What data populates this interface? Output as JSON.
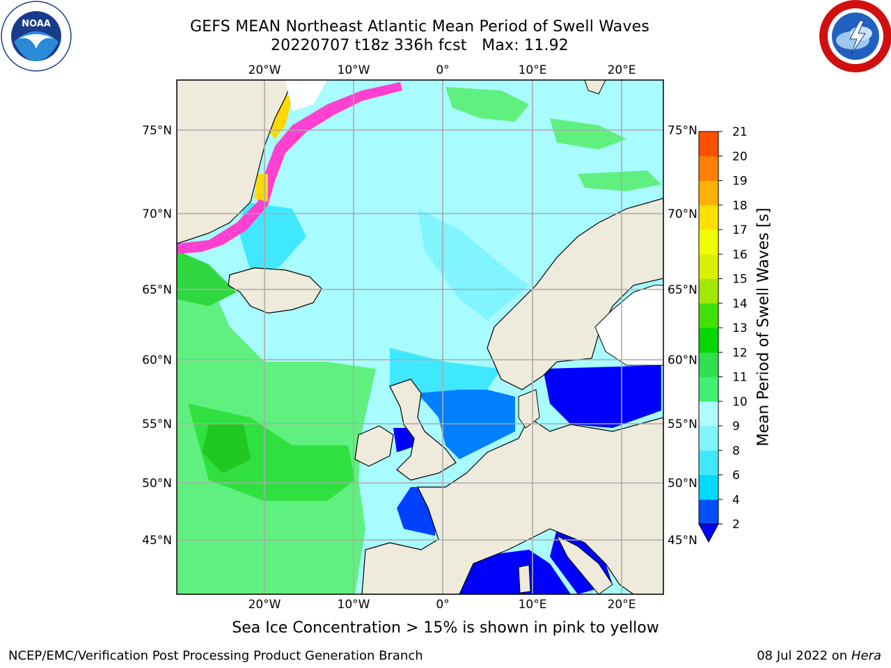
{
  "title": {
    "line1": "GEFS MEAN Northeast Atlantic Mean Period of Swell Waves",
    "line2": "20220707 t18z 336h fcst   Max: 11.92"
  },
  "axes": {
    "lon_labels": [
      "20°W",
      "10°W",
      "0°",
      "10°E",
      "20°E"
    ],
    "lat_labels": [
      "75°N",
      "70°N",
      "65°N",
      "60°N",
      "55°N",
      "50°N",
      "45°N"
    ]
  },
  "colorbar": {
    "label": "Mean Period of Swell Waves [s]",
    "ticks": [
      "2",
      "4",
      "6",
      "8",
      "9",
      "10",
      "11",
      "12",
      "13",
      "14",
      "15",
      "16",
      "17",
      "18",
      "19",
      "20",
      "21"
    ],
    "colors": [
      "#0050ff",
      "#00d8ff",
      "#40e8ff",
      "#80f4ff",
      "#b0fcff",
      "#40f070",
      "#30e050",
      "#00d800",
      "#40e000",
      "#a0e800",
      "#d8f000",
      "#f0ff00",
      "#ffe000",
      "#ffb000",
      "#ff8000",
      "#ff5000",
      "#ff2000",
      "#ff0000"
    ],
    "extend_color": "#0000ff"
  },
  "ice_note": "Sea Ice Concentration > 15% is shown in pink to yellow",
  "footer": {
    "left": "NCEP/EMC/Verification Post Processing Product Generation Branch",
    "right_prefix": "08 Jul 2022 on ",
    "right_italic": "Hera"
  },
  "logos": {
    "left": "noaa-logo",
    "right": "national-weather-service-logo"
  }
}
